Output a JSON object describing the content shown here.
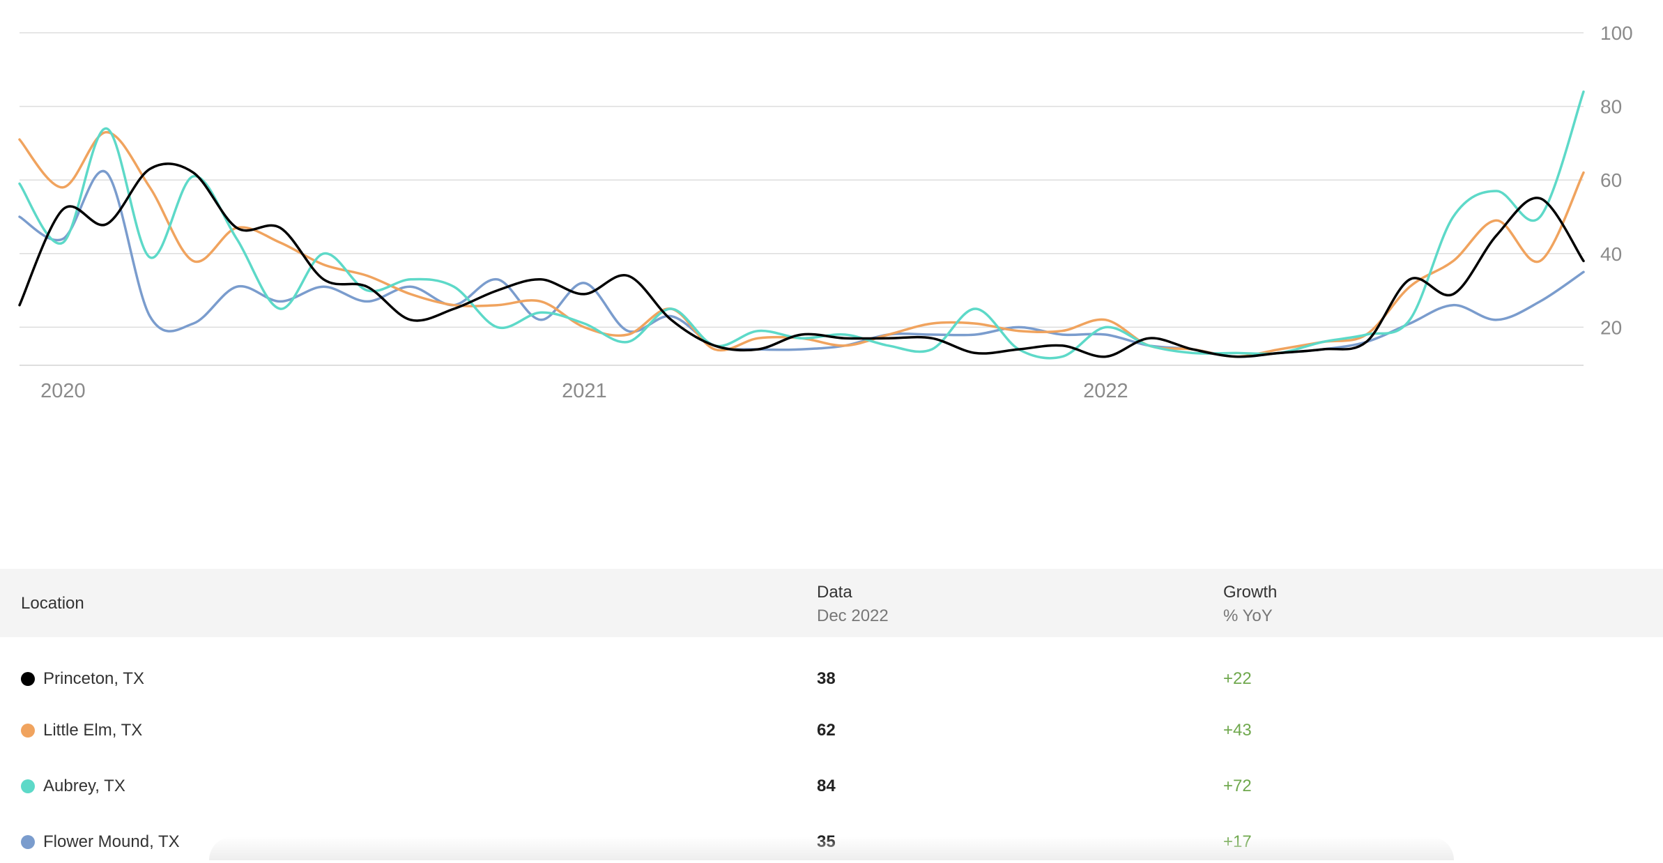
{
  "chart_data": {
    "type": "line",
    "y_ticks": [
      20,
      40,
      60,
      80,
      100
    ],
    "x_ticks": [
      "2020",
      "2021",
      "2022"
    ],
    "ylim": [
      10,
      100
    ],
    "grid": true,
    "series": [
      {
        "name": "Princeton, TX",
        "color": "#000000",
        "values": [
          26,
          52,
          48,
          63,
          62,
          47,
          47,
          33,
          31,
          22,
          25,
          30,
          33,
          29,
          34,
          22,
          15,
          14,
          18,
          17,
          17,
          17,
          13,
          14,
          15,
          12,
          17,
          14,
          12,
          13,
          14,
          16,
          33,
          29,
          45,
          55,
          38
        ]
      },
      {
        "name": "Little Elm, TX",
        "color": "#f0a35e",
        "values": [
          71,
          58,
          73,
          58,
          38,
          47,
          43,
          37,
          34,
          29,
          26,
          26,
          27,
          20,
          18,
          25,
          14,
          17,
          17,
          15,
          18,
          21,
          21,
          19,
          19,
          22,
          15,
          14,
          12,
          14,
          16,
          18,
          31,
          38,
          49,
          38,
          62
        ]
      },
      {
        "name": "Aubrey, TX",
        "color": "#5dd9c8",
        "values": [
          59,
          43,
          74,
          39,
          61,
          44,
          25,
          40,
          30,
          33,
          31,
          20,
          24,
          21,
          16,
          25,
          15,
          19,
          17,
          18,
          15,
          14,
          25,
          14,
          12,
          20,
          15,
          13,
          13,
          13,
          16,
          18,
          22,
          50,
          57,
          50,
          84
        ]
      },
      {
        "name": "Flower Mound, TX",
        "color": "#7a9ccd",
        "values": [
          50,
          44,
          62,
          23,
          21,
          31,
          27,
          31,
          27,
          31,
          26,
          33,
          22,
          32,
          19,
          23,
          15,
          14,
          14,
          15,
          18,
          18,
          18,
          20,
          18,
          18,
          15,
          14,
          12,
          13,
          14,
          16,
          21,
          26,
          22,
          27,
          35
        ]
      }
    ]
  },
  "table": {
    "headers": {
      "location": "Location",
      "data": "Data",
      "data_sub": "Dec 2022",
      "growth": "Growth",
      "growth_sub": "% YoY"
    },
    "rows": [
      {
        "location": "Princeton, TX",
        "color": "#000000",
        "data": "38",
        "growth": "+22"
      },
      {
        "location": "Little Elm, TX",
        "color": "#f0a35e",
        "data": "62",
        "growth": "+43"
      },
      {
        "location": "Aubrey, TX",
        "color": "#5dd9c8",
        "data": "84",
        "growth": "+72"
      },
      {
        "location": "Flower Mound, TX",
        "color": "#7a9ccd",
        "data": "35",
        "growth": "+17"
      }
    ]
  }
}
